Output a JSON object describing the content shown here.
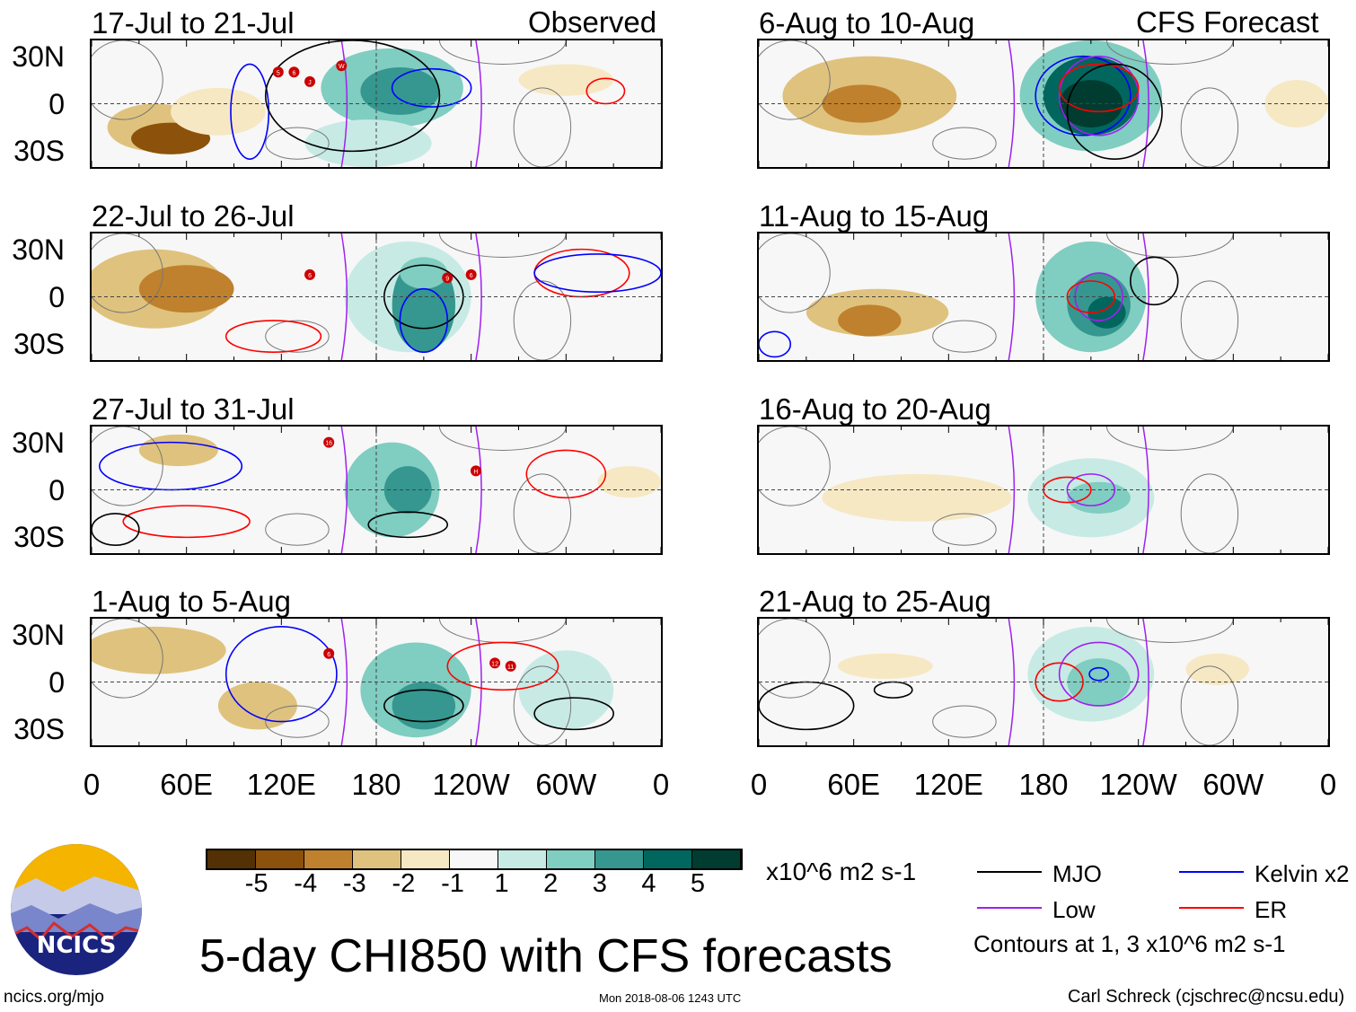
{
  "title": "5-day CHI850 with CFS forecasts",
  "left_header": "Observed",
  "right_header": "CFS Forecast",
  "units": "x10^6 m2 s-1",
  "contour_note": "Contours at 1, 3 x10^6 m2 s-1",
  "site": "ncics.org/mjo",
  "timestamp": "Mon 2018-08-06 1243 UTC",
  "author": "Carl Schreck (cjschrec@ncsu.edu)",
  "logo_text": "NCICS",
  "legend": [
    {
      "label": "MJO",
      "color": "#000000"
    },
    {
      "label": "Kelvin x2",
      "color": "#0000ff"
    },
    {
      "label": "Low",
      "color": "#a020f0"
    },
    {
      "label": "ER",
      "color": "#ff0000"
    }
  ],
  "colorbar": {
    "colors": [
      "#543005",
      "#8c510a",
      "#bf812d",
      "#dfc27d",
      "#f6e8c3",
      "#f7f7f7",
      "#c7eae5",
      "#80cdc1",
      "#35978f",
      "#01665e",
      "#003c30"
    ],
    "labels": [
      "-5",
      "-4",
      "-3",
      "-2",
      "-1",
      "1",
      "2",
      "3",
      "4",
      "5"
    ]
  },
  "chart_data": {
    "type": "heatmap",
    "xlabels": [
      "0",
      "60E",
      "120E",
      "180",
      "120W",
      "60W",
      "0"
    ],
    "ylabels": [
      "30N",
      "0",
      "30S"
    ],
    "xlim": [
      0,
      360
    ],
    "ylim": [
      -40,
      40
    ],
    "panels": [
      {
        "title": "17-Jul to 21-Jul",
        "blobs": [
          [
            40,
            -15,
            30,
            15,
            -2
          ],
          [
            50,
            -22,
            25,
            10,
            -4
          ],
          [
            80,
            -5,
            30,
            15,
            -1
          ],
          [
            190,
            10,
            45,
            25,
            2
          ],
          [
            195,
            8,
            25,
            15,
            3
          ],
          [
            175,
            -25,
            40,
            15,
            1
          ],
          [
            300,
            15,
            30,
            10,
            -1
          ]
        ],
        "contours": [
          [
            215,
            10,
            25,
            12,
            "#0000ff"
          ],
          [
            100,
            -5,
            12,
            30,
            "#0000ff"
          ],
          [
            165,
            5,
            55,
            35,
            "#000000"
          ],
          [
            325,
            8,
            12,
            8,
            "#ff0000"
          ]
        ],
        "storms": [
          [
            118,
            20,
            "5"
          ],
          [
            128,
            20,
            "6"
          ],
          [
            138,
            14,
            "J"
          ],
          [
            158,
            24,
            "W"
          ]
        ]
      },
      {
        "title": "22-Jul to 26-Jul",
        "blobs": [
          [
            40,
            5,
            45,
            25,
            -2
          ],
          [
            60,
            5,
            30,
            15,
            -3
          ],
          [
            200,
            0,
            40,
            35,
            1
          ],
          [
            210,
            -5,
            20,
            30,
            3
          ],
          [
            210,
            15,
            15,
            10,
            2
          ]
        ],
        "contours": [
          [
            210,
            0,
            25,
            20,
            "#000000"
          ],
          [
            210,
            -15,
            15,
            20,
            "#0000ff"
          ],
          [
            115,
            -25,
            30,
            10,
            "#ff0000"
          ],
          [
            310,
            15,
            30,
            15,
            "#ff0000"
          ],
          [
            320,
            15,
            40,
            12,
            "#0000ff"
          ]
        ],
        "storms": [
          [
            138,
            14,
            "6"
          ],
          [
            225,
            12,
            "9"
          ],
          [
            240,
            14,
            "6"
          ]
        ]
      },
      {
        "title": "27-Jul to 31-Jul",
        "blobs": [
          [
            190,
            0,
            30,
            30,
            2
          ],
          [
            200,
            0,
            15,
            15,
            3
          ],
          [
            55,
            25,
            25,
            10,
            -2
          ],
          [
            340,
            5,
            20,
            10,
            -1
          ]
        ],
        "contours": [
          [
            50,
            15,
            45,
            15,
            "#0000ff"
          ],
          [
            60,
            -20,
            40,
            10,
            "#ff0000"
          ],
          [
            300,
            10,
            25,
            15,
            "#ff0000"
          ],
          [
            15,
            -25,
            15,
            10,
            "#000000"
          ],
          [
            200,
            -22,
            25,
            8,
            "#000000"
          ]
        ],
        "storms": [
          [
            150,
            30,
            "16"
          ],
          [
            243,
            12,
            "H"
          ]
        ]
      },
      {
        "title": "1-Aug to 5-Aug",
        "blobs": [
          [
            40,
            20,
            45,
            15,
            -2
          ],
          [
            105,
            -15,
            25,
            15,
            -2
          ],
          [
            205,
            -5,
            35,
            30,
            2
          ],
          [
            210,
            -15,
            20,
            15,
            3
          ],
          [
            300,
            -5,
            30,
            25,
            1
          ]
        ],
        "contours": [
          [
            120,
            5,
            35,
            30,
            "#0000ff"
          ],
          [
            210,
            -15,
            25,
            10,
            "#000000"
          ],
          [
            260,
            10,
            35,
            15,
            "#ff0000"
          ],
          [
            305,
            -20,
            25,
            10,
            "#000000"
          ]
        ],
        "storms": [
          [
            150,
            18,
            "6"
          ],
          [
            255,
            12,
            "12"
          ],
          [
            265,
            10,
            "11"
          ]
        ]
      },
      {
        "title": "6-Aug to 10-Aug",
        "blobs": [
          [
            70,
            5,
            55,
            25,
            -2
          ],
          [
            65,
            0,
            25,
            12,
            -3
          ],
          [
            210,
            5,
            45,
            35,
            2
          ],
          [
            210,
            5,
            30,
            25,
            4
          ],
          [
            210,
            0,
            20,
            15,
            5
          ],
          [
            340,
            0,
            20,
            15,
            -1
          ]
        ],
        "contours": [
          [
            205,
            5,
            30,
            25,
            "#0000ff"
          ],
          [
            215,
            5,
            25,
            25,
            "#a020f0"
          ],
          [
            215,
            10,
            25,
            15,
            "#ff0000"
          ],
          [
            225,
            -5,
            30,
            30,
            "#000000"
          ]
        ],
        "storms": []
      },
      {
        "title": "11-Aug to 15-Aug",
        "blobs": [
          [
            75,
            -10,
            45,
            15,
            -2
          ],
          [
            70,
            -15,
            20,
            10,
            -3
          ],
          [
            210,
            0,
            35,
            35,
            2
          ],
          [
            215,
            -5,
            20,
            20,
            3
          ],
          [
            220,
            -10,
            12,
            10,
            4
          ]
        ],
        "contours": [
          [
            215,
            0,
            15,
            15,
            "#a020f0"
          ],
          [
            210,
            0,
            15,
            10,
            "#ff0000"
          ],
          [
            250,
            10,
            15,
            15,
            "#000000"
          ],
          [
            10,
            -30,
            10,
            8,
            "#0000ff"
          ]
        ],
        "storms": []
      },
      {
        "title": "16-Aug to 20-Aug",
        "blobs": [
          [
            100,
            -5,
            60,
            15,
            -1
          ],
          [
            210,
            -5,
            40,
            25,
            1
          ],
          [
            215,
            -5,
            20,
            10,
            2
          ]
        ],
        "contours": [
          [
            195,
            0,
            15,
            8,
            "#ff0000"
          ],
          [
            210,
            0,
            15,
            10,
            "#a020f0"
          ]
        ],
        "storms": []
      },
      {
        "title": "21-Aug to 25-Aug",
        "blobs": [
          [
            210,
            5,
            40,
            30,
            1
          ],
          [
            215,
            0,
            20,
            15,
            2
          ],
          [
            80,
            10,
            30,
            8,
            -1
          ],
          [
            290,
            8,
            20,
            10,
            -1
          ]
        ],
        "contours": [
          [
            190,
            0,
            15,
            12,
            "#ff0000"
          ],
          [
            215,
            5,
            25,
            20,
            "#a020f0"
          ],
          [
            215,
            5,
            6,
            4,
            "#0000ff"
          ],
          [
            85,
            -5,
            12,
            5,
            "#000000"
          ],
          [
            30,
            -15,
            30,
            15,
            "#000000"
          ]
        ],
        "storms": []
      }
    ]
  }
}
